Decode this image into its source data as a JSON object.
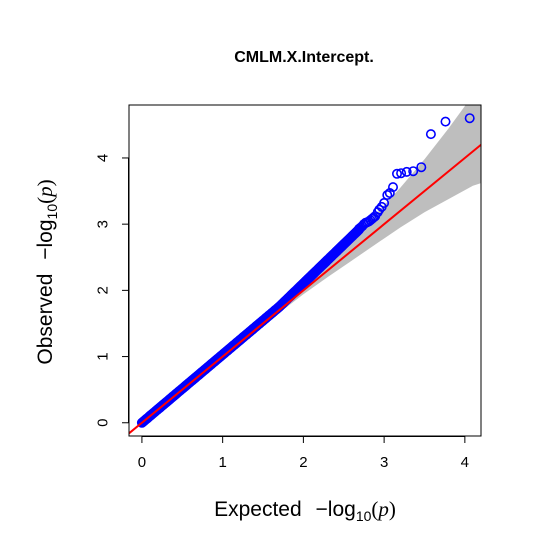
{
  "chart_data": {
    "type": "scatter",
    "title": "CMLM.X.Intercept.",
    "xlabel": {
      "prefix": "Expected",
      "minus": "−",
      "log": "log",
      "sub": "10",
      "open": "(",
      "var": "p",
      "close": ")"
    },
    "ylabel": {
      "prefix": "Observed",
      "minus": "−",
      "log": "log",
      "sub": "10",
      "open": "(",
      "var": "p",
      "close": ")"
    },
    "xlim": [
      -0.16,
      4.2
    ],
    "ylim": [
      -0.2,
      4.8
    ],
    "xticks": [
      "0",
      "1",
      "2",
      "3",
      "4"
    ],
    "yticks": [
      "0",
      "1",
      "2",
      "3",
      "4"
    ],
    "grid": false,
    "reference_line": {
      "slope": 1,
      "intercept": 0,
      "color": "#ff0000"
    },
    "confidence_band": {
      "color": "#bebebe",
      "x": [
        1.7,
        2.0,
        2.3,
        2.6,
        2.9,
        3.2,
        3.5,
        3.8,
        4.1,
        4.2
      ],
      "lower": [
        1.66,
        1.94,
        2.2,
        2.45,
        2.7,
        2.95,
        3.18,
        3.38,
        3.58,
        3.62
      ],
      "upper": [
        1.74,
        2.06,
        2.42,
        2.78,
        3.15,
        3.55,
        3.98,
        4.45,
        4.95,
        5.05
      ]
    },
    "series_color": "#0000ff",
    "points": {
      "x": [
        4.06,
        3.76,
        3.58,
        3.46,
        3.36,
        3.28,
        3.21,
        3.16,
        3.11,
        3.07,
        3.04,
        3.0,
        2.97,
        2.94,
        2.92,
        2.89,
        2.87,
        2.85,
        2.83,
        2.81,
        2.79,
        2.77,
        2.75,
        2.73,
        2.71,
        2.69
      ],
      "y": [
        4.6,
        4.55,
        4.36,
        3.86,
        3.8,
        3.79,
        3.77,
        3.76,
        3.56,
        3.47,
        3.44,
        3.32,
        3.26,
        3.22,
        3.18,
        3.12,
        3.1,
        3.08,
        3.06,
        3.04,
        3.03,
        3.02,
        3.0,
        2.97,
        2.95,
        2.93
      ]
    },
    "dense_run": {
      "x_from": 0.0,
      "x_to": 2.69,
      "y_from": 0.0,
      "y_to": 2.92,
      "bend_x": 1.7,
      "bend_y": 1.75
    }
  }
}
